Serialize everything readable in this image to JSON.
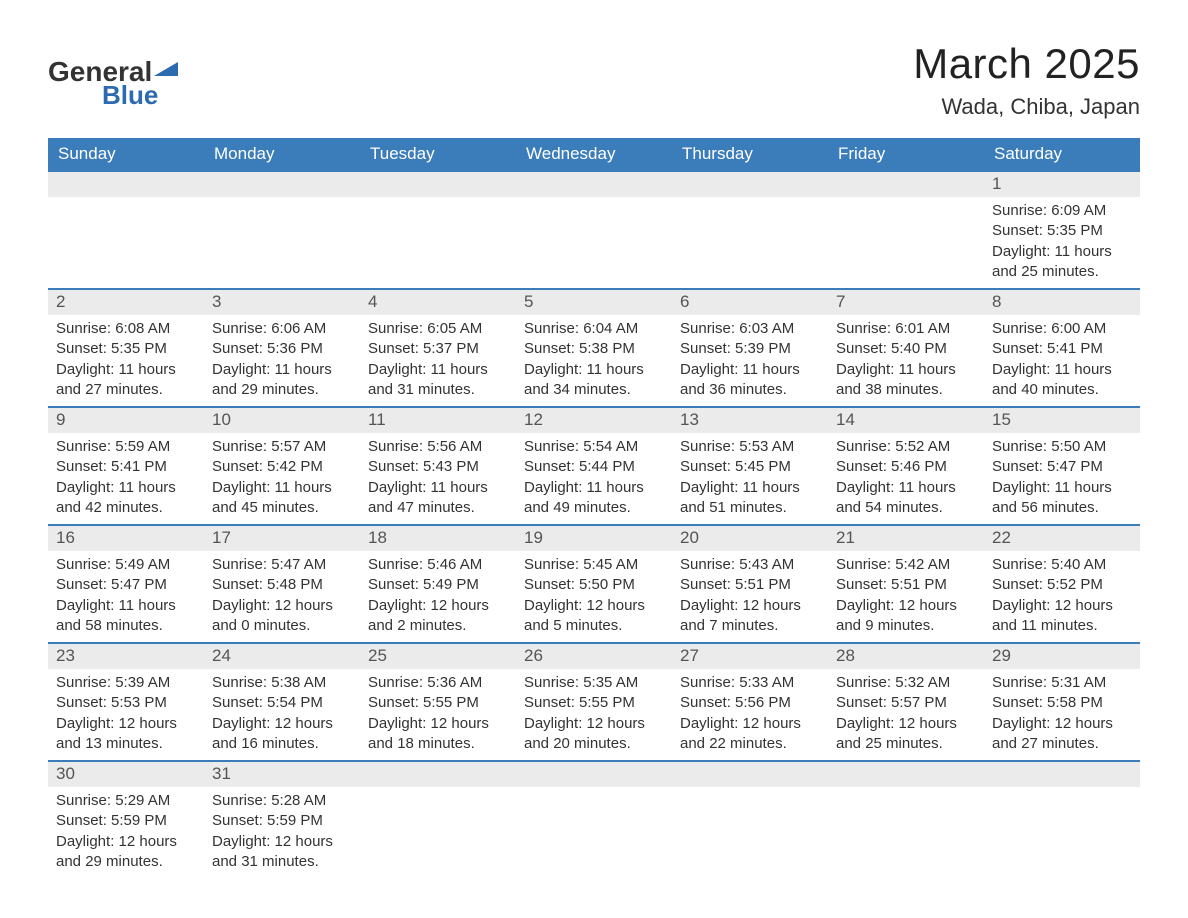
{
  "logo": {
    "general": "General",
    "blue": "Blue"
  },
  "title": "March 2025",
  "location": "Wada, Chiba, Japan",
  "colors": {
    "header_bg": "#3b7cba",
    "header_text": "#ffffff",
    "daynum_bg": "#ebebeb",
    "row_border": "#3b7cba",
    "body_text": "#333333",
    "logo_blue": "#2d6bb0"
  },
  "typography": {
    "title_fontsize": 42,
    "location_fontsize": 22,
    "header_fontsize": 17,
    "daynum_fontsize": 17,
    "cell_fontsize": 15,
    "logo_fontsize": 28
  },
  "layout": {
    "columns": 7,
    "weeks": 6,
    "start_day_index": 6
  },
  "weekdays": [
    "Sunday",
    "Monday",
    "Tuesday",
    "Wednesday",
    "Thursday",
    "Friday",
    "Saturday"
  ],
  "labels": {
    "sunrise": "Sunrise:",
    "sunset": "Sunset:",
    "daylight": "Daylight:"
  },
  "days": [
    {
      "n": "1",
      "sunrise": "6:09 AM",
      "sunset": "5:35 PM",
      "dl": "11 hours and 25 minutes."
    },
    {
      "n": "2",
      "sunrise": "6:08 AM",
      "sunset": "5:35 PM",
      "dl": "11 hours and 27 minutes."
    },
    {
      "n": "3",
      "sunrise": "6:06 AM",
      "sunset": "5:36 PM",
      "dl": "11 hours and 29 minutes."
    },
    {
      "n": "4",
      "sunrise": "6:05 AM",
      "sunset": "5:37 PM",
      "dl": "11 hours and 31 minutes."
    },
    {
      "n": "5",
      "sunrise": "6:04 AM",
      "sunset": "5:38 PM",
      "dl": "11 hours and 34 minutes."
    },
    {
      "n": "6",
      "sunrise": "6:03 AM",
      "sunset": "5:39 PM",
      "dl": "11 hours and 36 minutes."
    },
    {
      "n": "7",
      "sunrise": "6:01 AM",
      "sunset": "5:40 PM",
      "dl": "11 hours and 38 minutes."
    },
    {
      "n": "8",
      "sunrise": "6:00 AM",
      "sunset": "5:41 PM",
      "dl": "11 hours and 40 minutes."
    },
    {
      "n": "9",
      "sunrise": "5:59 AM",
      "sunset": "5:41 PM",
      "dl": "11 hours and 42 minutes."
    },
    {
      "n": "10",
      "sunrise": "5:57 AM",
      "sunset": "5:42 PM",
      "dl": "11 hours and 45 minutes."
    },
    {
      "n": "11",
      "sunrise": "5:56 AM",
      "sunset": "5:43 PM",
      "dl": "11 hours and 47 minutes."
    },
    {
      "n": "12",
      "sunrise": "5:54 AM",
      "sunset": "5:44 PM",
      "dl": "11 hours and 49 minutes."
    },
    {
      "n": "13",
      "sunrise": "5:53 AM",
      "sunset": "5:45 PM",
      "dl": "11 hours and 51 minutes."
    },
    {
      "n": "14",
      "sunrise": "5:52 AM",
      "sunset": "5:46 PM",
      "dl": "11 hours and 54 minutes."
    },
    {
      "n": "15",
      "sunrise": "5:50 AM",
      "sunset": "5:47 PM",
      "dl": "11 hours and 56 minutes."
    },
    {
      "n": "16",
      "sunrise": "5:49 AM",
      "sunset": "5:47 PM",
      "dl": "11 hours and 58 minutes."
    },
    {
      "n": "17",
      "sunrise": "5:47 AM",
      "sunset": "5:48 PM",
      "dl": "12 hours and 0 minutes."
    },
    {
      "n": "18",
      "sunrise": "5:46 AM",
      "sunset": "5:49 PM",
      "dl": "12 hours and 2 minutes."
    },
    {
      "n": "19",
      "sunrise": "5:45 AM",
      "sunset": "5:50 PM",
      "dl": "12 hours and 5 minutes."
    },
    {
      "n": "20",
      "sunrise": "5:43 AM",
      "sunset": "5:51 PM",
      "dl": "12 hours and 7 minutes."
    },
    {
      "n": "21",
      "sunrise": "5:42 AM",
      "sunset": "5:51 PM",
      "dl": "12 hours and 9 minutes."
    },
    {
      "n": "22",
      "sunrise": "5:40 AM",
      "sunset": "5:52 PM",
      "dl": "12 hours and 11 minutes."
    },
    {
      "n": "23",
      "sunrise": "5:39 AM",
      "sunset": "5:53 PM",
      "dl": "12 hours and 13 minutes."
    },
    {
      "n": "24",
      "sunrise": "5:38 AM",
      "sunset": "5:54 PM",
      "dl": "12 hours and 16 minutes."
    },
    {
      "n": "25",
      "sunrise": "5:36 AM",
      "sunset": "5:55 PM",
      "dl": "12 hours and 18 minutes."
    },
    {
      "n": "26",
      "sunrise": "5:35 AM",
      "sunset": "5:55 PM",
      "dl": "12 hours and 20 minutes."
    },
    {
      "n": "27",
      "sunrise": "5:33 AM",
      "sunset": "5:56 PM",
      "dl": "12 hours and 22 minutes."
    },
    {
      "n": "28",
      "sunrise": "5:32 AM",
      "sunset": "5:57 PM",
      "dl": "12 hours and 25 minutes."
    },
    {
      "n": "29",
      "sunrise": "5:31 AM",
      "sunset": "5:58 PM",
      "dl": "12 hours and 27 minutes."
    },
    {
      "n": "30",
      "sunrise": "5:29 AM",
      "sunset": "5:59 PM",
      "dl": "12 hours and 29 minutes."
    },
    {
      "n": "31",
      "sunrise": "5:28 AM",
      "sunset": "5:59 PM",
      "dl": "12 hours and 31 minutes."
    }
  ]
}
